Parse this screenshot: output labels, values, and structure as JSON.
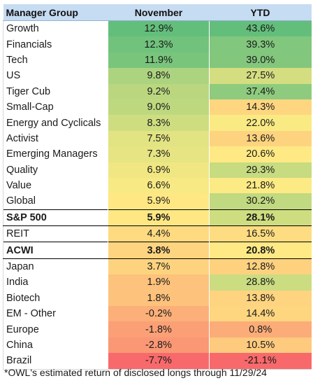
{
  "chart_data": {
    "type": "table",
    "columns": [
      "Manager Group",
      "November",
      "YTD"
    ],
    "rows": [
      {
        "group": "Growth",
        "november": "12.9%",
        "ytd": "43.6%",
        "nov_value": 12.9,
        "ytd_value": 43.6,
        "bold": false
      },
      {
        "group": "Financials",
        "november": "12.3%",
        "ytd": "39.3%",
        "nov_value": 12.3,
        "ytd_value": 39.3,
        "bold": false
      },
      {
        "group": "Tech",
        "november": "11.9%",
        "ytd": "39.0%",
        "nov_value": 11.9,
        "ytd_value": 39.0,
        "bold": false
      },
      {
        "group": "US",
        "november": "9.8%",
        "ytd": "27.5%",
        "nov_value": 9.8,
        "ytd_value": 27.5,
        "bold": false
      },
      {
        "group": "Tiger Cub",
        "november": "9.2%",
        "ytd": "37.4%",
        "nov_value": 9.2,
        "ytd_value": 37.4,
        "bold": false
      },
      {
        "group": "Small-Cap",
        "november": "9.0%",
        "ytd": "14.3%",
        "nov_value": 9.0,
        "ytd_value": 14.3,
        "bold": false
      },
      {
        "group": "Energy and Cyclicals",
        "november": "8.3%",
        "ytd": "22.0%",
        "nov_value": 8.3,
        "ytd_value": 22.0,
        "bold": false
      },
      {
        "group": "Activist",
        "november": "7.5%",
        "ytd": "13.6%",
        "nov_value": 7.5,
        "ytd_value": 13.6,
        "bold": false
      },
      {
        "group": "Emerging Managers",
        "november": "7.3%",
        "ytd": "20.6%",
        "nov_value": 7.3,
        "ytd_value": 20.6,
        "bold": false
      },
      {
        "group": "Quality",
        "november": "6.9%",
        "ytd": "29.3%",
        "nov_value": 6.9,
        "ytd_value": 29.3,
        "bold": false
      },
      {
        "group": "Value",
        "november": "6.6%",
        "ytd": "21.8%",
        "nov_value": 6.6,
        "ytd_value": 21.8,
        "bold": false
      },
      {
        "group": "Global",
        "november": "5.9%",
        "ytd": "30.2%",
        "nov_value": 5.9,
        "ytd_value": 30.2,
        "bold": false
      },
      {
        "group": "S&P 500",
        "november": "5.9%",
        "ytd": "28.1%",
        "nov_value": 5.9,
        "ytd_value": 28.1,
        "bold": true
      },
      {
        "group": "REIT",
        "november": "4.4%",
        "ytd": "16.5%",
        "nov_value": 4.4,
        "ytd_value": 16.5,
        "bold": false
      },
      {
        "group": "ACWI",
        "november": "3.8%",
        "ytd": "20.8%",
        "nov_value": 3.8,
        "ytd_value": 20.8,
        "bold": true
      },
      {
        "group": "Japan",
        "november": "3.7%",
        "ytd": "12.8%",
        "nov_value": 3.7,
        "ytd_value": 12.8,
        "bold": false
      },
      {
        "group": "India",
        "november": "1.9%",
        "ytd": "28.8%",
        "nov_value": 1.9,
        "ytd_value": 28.8,
        "bold": false
      },
      {
        "group": "Biotech",
        "november": "1.8%",
        "ytd": "13.8%",
        "nov_value": 1.8,
        "ytd_value": 13.8,
        "bold": false
      },
      {
        "group": "EM - Other",
        "november": "-0.2%",
        "ytd": "14.4%",
        "nov_value": -0.2,
        "ytd_value": 14.4,
        "bold": false
      },
      {
        "group": "Europe",
        "november": "-1.8%",
        "ytd": "0.8%",
        "nov_value": -1.8,
        "ytd_value": 0.8,
        "bold": false
      },
      {
        "group": "China",
        "november": "-2.8%",
        "ytd": "10.5%",
        "nov_value": -2.8,
        "ytd_value": 10.5,
        "bold": false
      },
      {
        "group": "Brazil",
        "november": "-7.7%",
        "ytd": "-21.1%",
        "nov_value": -7.7,
        "ytd_value": -21.1,
        "bold": false
      }
    ],
    "color_scale": {
      "low": "#f8696b",
      "mid": "#ffeb84",
      "high": "#63be7b"
    },
    "footnote": "*OWL's estimated return of disclosed longs through 11/29/24"
  }
}
